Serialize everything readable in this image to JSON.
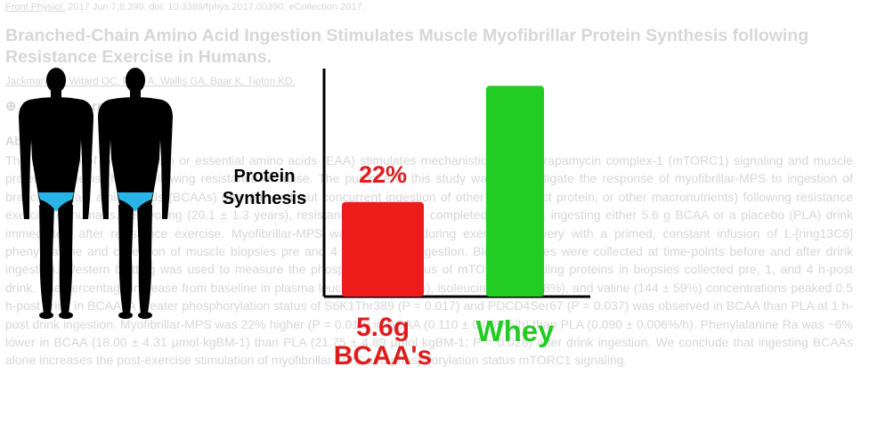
{
  "paper": {
    "citation_journal": "Front Physiol.",
    "citation_rest": " 2017 Jun 7;8:390. doi: 10.3389/fphys.2017.00390. eCollection 2017.",
    "title": "Branched-Chain Amino Acid Ingestion Stimulates Muscle Myofibrillar Protein Synthesis following Resistance Exercise in Humans.",
    "authors": "Jackman SR, Witard OC, Philp A, Wallis GA, Baar K, Tipton KD.",
    "author_info": "⊕ Author information",
    "abstract_heading": "Abstract",
    "abstract": "The ingestion of intact protein or essential amino acids (EAA) stimulates mechanistic target of rapamycin complex-1 (mTORC1) signaling and muscle protein synthesis (MPS) following resistance exercise. The purpose of this study was to investigate the response of myofibrillar-MPS to ingestion of branched-chain amino acids (BCAAs) only (i.e., without concurrent ingestion of other EAA, intact protein, or other macronutrients) following resistance exercise in humans. Ten young (20.1 ± 1.3 years), resistance-trained men completed two trials, ingesting either 5.6 g BCAA or a placebo (PLA) drink immediately after resistance exercise. Myofibrillar-MPS was measured during exercise recovery with a primed, constant infusion of L-[ring13C6] phenylalanine and collection of muscle biopsies pre and 4 h-post drink ingestion. Blood samples were collected at time-points before and after drink ingestion. Western blotting was used to measure the phosphorylation status of mTORC1 signaling proteins in biopsies collected pre, 1, and 4 h-post drink. The percentage increase from baseline in plasma leucine (300 ± 96%), isoleucine (300 ± 88%), and valine (144 ± 59%) concentrations peaked 0.5 h-post drink in BCAA. A greater phosphorylation status of S6K1Thr389 (P = 0.017) and PDCD4Ser67 (P = 0.037) was observed in BCAA than PLA at 1 h-post drink ingestion. Myofibrillar-MPS was 22% higher (P = 0.012) in BCAA (0.110 ± 0.009%/h) than PLA (0.090 ± 0.006%/h). Phenylalanine Ra was ~6% lower in BCAA (18.00 ± 4.31 μmol·kgBM-1) than PLA (21.75 ± 4.89 μmol·kgBM-1; P = 0.028) after drink ingestion. We conclude that ingesting BCAAs alone increases the post-exercise stimulation of myofibrillar-MPS and phosphorylation status mTORC1 signaling."
  },
  "figures": [
    "muscular-male-figure-icon",
    "muscular-male-figure-icon"
  ],
  "colors": {
    "bcaa": "#ee1b1b",
    "whey": "#22cc22",
    "axis": "#000000",
    "pct_text": "#e01b1b",
    "whey_text": "#22cc22"
  },
  "chart_data": {
    "type": "bar",
    "title": "",
    "ylabel": "Protein Synthesis",
    "xlabel": "",
    "categories": [
      "5.6g BCAA's",
      "Whey"
    ],
    "category_lines": [
      [
        "5.6g",
        "BCAA's"
      ],
      [
        "Whey"
      ]
    ],
    "values": [
      22,
      49
    ],
    "ylim": [
      0,
      53
    ],
    "data_labels": [
      "22%",
      ""
    ],
    "grid": false,
    "legend": "none"
  }
}
